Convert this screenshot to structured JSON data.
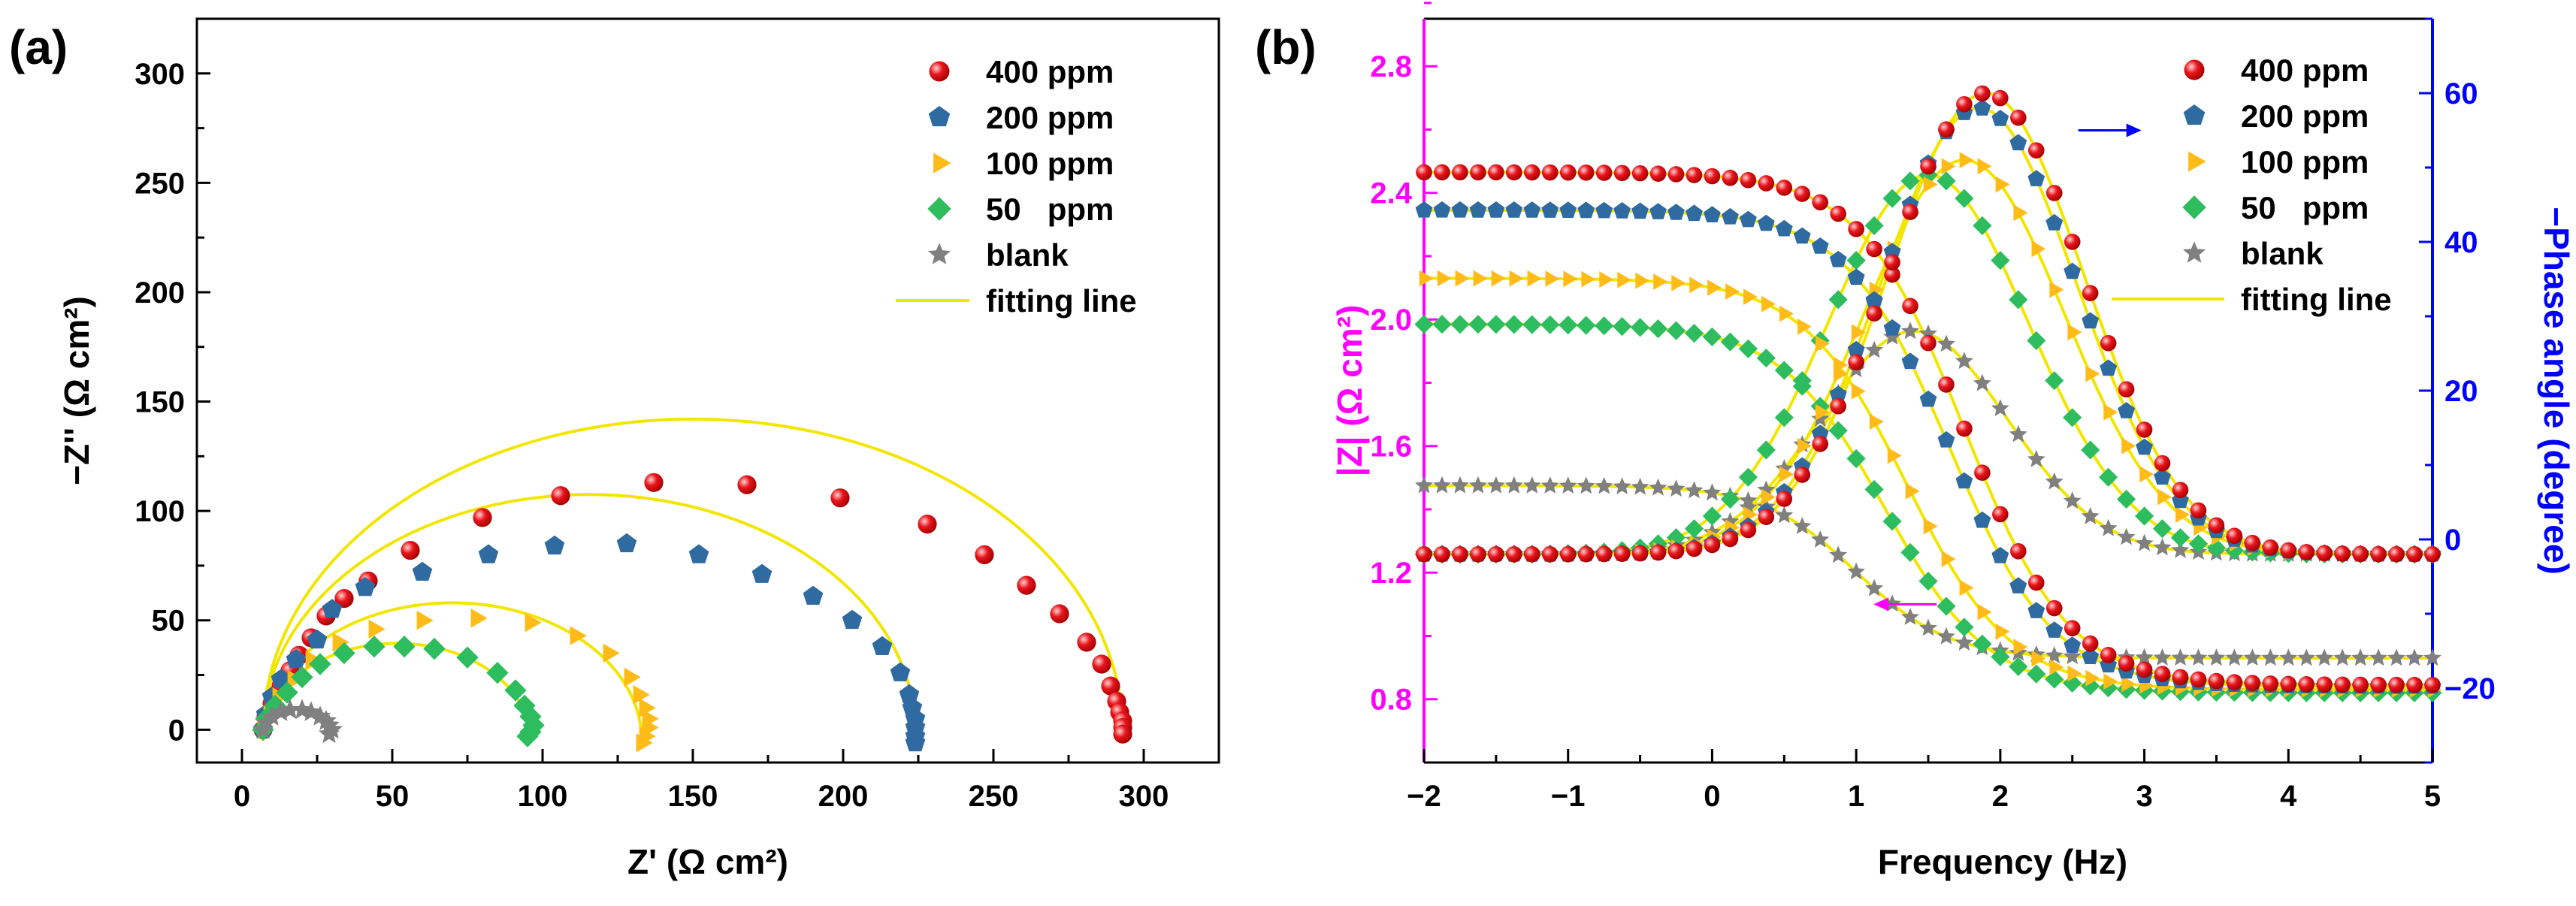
{
  "chart_data": [
    {
      "panel": "(a)",
      "type": "scatter",
      "title": "",
      "xlabel": "Z' (Ω cm²)",
      "ylabel": "−Z'' (Ω cm²)",
      "xlim": [
        -15,
        325
      ],
      "ylim": [
        -15,
        325
      ],
      "xticks": [
        0,
        50,
        100,
        150,
        200,
        250,
        300
      ],
      "yticks": [
        0,
        50,
        100,
        150,
        200,
        250,
        300
      ],
      "legend_position": "top-right",
      "legend": [
        "400 ppm",
        "200 ppm",
        "100 ppm",
        "50   ppm",
        "blank",
        "fitting line"
      ],
      "series": [
        {
          "name": "400 ppm",
          "marker": "circle",
          "color": "#e8141b",
          "points": [
            [
              7,
              0
            ],
            [
              8,
              6
            ],
            [
              10,
              12
            ],
            [
              13,
              20
            ],
            [
              16,
              27
            ],
            [
              19,
              34
            ],
            [
              23,
              42
            ],
            [
              28,
              52
            ],
            [
              34,
              60
            ],
            [
              42,
              68
            ],
            [
              56,
              82
            ],
            [
              80,
              97
            ],
            [
              106,
              107
            ],
            [
              137,
              113
            ],
            [
              168,
              112
            ],
            [
              199,
              106
            ],
            [
              228,
              94
            ],
            [
              247,
              80
            ],
            [
              261,
              66
            ],
            [
              272,
              53
            ],
            [
              281,
              40
            ],
            [
              286,
              30
            ],
            [
              289,
              20
            ],
            [
              291,
              13
            ],
            [
              292,
              8
            ],
            [
              293,
              4
            ],
            [
              293,
              1
            ],
            [
              293,
              -2
            ]
          ]
        },
        {
          "name": "200 ppm",
          "marker": "pentagon",
          "color": "#2f6aa0",
          "points": [
            [
              7,
              0
            ],
            [
              8,
              7
            ],
            [
              10,
              15
            ],
            [
              13,
              23
            ],
            [
              18,
              32
            ],
            [
              25,
              41
            ],
            [
              30,
              55
            ],
            [
              41,
              65
            ],
            [
              60,
              72
            ],
            [
              82,
              80
            ],
            [
              104,
              84
            ],
            [
              128,
              85
            ],
            [
              152,
              80
            ],
            [
              173,
              71
            ],
            [
              190,
              61
            ],
            [
              203,
              50
            ],
            [
              213,
              38
            ],
            [
              219,
              26
            ],
            [
              222,
              16
            ],
            [
              223,
              10
            ],
            [
              224,
              5
            ],
            [
              224,
              1
            ],
            [
              224,
              -3
            ],
            [
              224,
              -6
            ]
          ]
        },
        {
          "name": "100 ppm",
          "marker": "triangle",
          "color": "#ffbb17",
          "points": [
            [
              7,
              0
            ],
            [
              9,
              7
            ],
            [
              12,
              15
            ],
            [
              17,
              23
            ],
            [
              23,
              32
            ],
            [
              32,
              40
            ],
            [
              44,
              46
            ],
            [
              60,
              50
            ],
            [
              78,
              51
            ],
            [
              96,
              49
            ],
            [
              111,
              43
            ],
            [
              122,
              35
            ],
            [
              129,
              24
            ],
            [
              132,
              16
            ],
            [
              134,
              10
            ],
            [
              135,
              5
            ],
            [
              135,
              1
            ],
            [
              134,
              -3
            ],
            [
              133,
              -6
            ]
          ]
        },
        {
          "name": "50 ppm",
          "marker": "diamond",
          "color": "#2ebd5e",
          "points": [
            [
              7,
              0
            ],
            [
              8,
              5
            ],
            [
              11,
              11
            ],
            [
              15,
              17
            ],
            [
              20,
              24
            ],
            [
              26,
              30
            ],
            [
              34,
              35
            ],
            [
              44,
              38
            ],
            [
              54,
              38
            ],
            [
              64,
              37
            ],
            [
              75,
              33
            ],
            [
              85,
              26
            ],
            [
              91,
              18
            ],
            [
              94,
              11
            ],
            [
              96,
              6
            ],
            [
              97,
              2
            ],
            [
              96,
              -1
            ],
            [
              95,
              -3
            ]
          ]
        },
        {
          "name": "blank",
          "marker": "star",
          "color": "#808080",
          "points": [
            [
              7,
              0
            ],
            [
              8,
              3
            ],
            [
              10,
              6
            ],
            [
              13,
              8
            ],
            [
              16,
              9
            ],
            [
              20,
              9
            ],
            [
              23,
              8
            ],
            [
              26,
              6
            ],
            [
              28,
              4
            ],
            [
              29,
              2
            ],
            [
              30,
              0
            ],
            [
              29,
              -2
            ]
          ]
        }
      ],
      "fits": [
        {
          "name": "400 ppm",
          "type": "semicircle",
          "center": [
            150,
            -1
          ],
          "radius": 143
        },
        {
          "name": "200 ppm",
          "type": "semicircle",
          "center": [
            115.5,
            -1
          ],
          "radius": 108.5
        },
        {
          "name": "100 ppm",
          "type": "semicircle",
          "center": [
            70,
            -5
          ],
          "radius": 63
        },
        {
          "name": "50 ppm",
          "type": "semicircle",
          "center": [
            51.5,
            -5
          ],
          "radius": 44.5
        },
        {
          "name": "blank",
          "type": "semicircle",
          "center": [
            18.5,
            -2
          ],
          "radius": 11.5
        }
      ]
    },
    {
      "panel": "(b)",
      "type": "scatter",
      "title": "",
      "xlabel": "Frequency (Hz)",
      "ylabel_left": "|Z| (Ω cm²)",
      "ylabel_right": "−Phase angle (degree)",
      "xlim": [
        -2,
        5
      ],
      "ylim_left": [
        0.6,
        2.95
      ],
      "ylim_right": [
        -30,
        70
      ],
      "xticks": [
        -2,
        -1,
        0,
        1,
        2,
        3,
        4,
        5
      ],
      "xtick_labels": [
        "−2",
        "−1",
        "0",
        "1",
        "2",
        "3",
        "4",
        "5"
      ],
      "yticks_left": [
        0.8,
        1.2,
        1.6,
        2.0,
        2.4,
        2.8
      ],
      "ytick_labels_left": [
        "0.8",
        "1.2",
        "1.6",
        "2.0",
        "2.4",
        "2.8"
      ],
      "yticks_right": [
        -20,
        0,
        20,
        40,
        60
      ],
      "ytick_labels_right": [
        "−20",
        "0",
        "20",
        "40",
        "60"
      ],
      "left_axis_color": "#ff00ff",
      "right_axis_color": "#0000ff",
      "legend_position": "top-right",
      "legend": [
        "400 ppm",
        "200 ppm",
        "100 ppm",
        "50   ppm",
        "blank",
        "fitting line"
      ],
      "modulus_series": [
        {
          "name": "400 ppm",
          "marker": "circle",
          "color": "#e8141b",
          "high": 2.465,
          "low": 0.845,
          "center": 1.75,
          "width": 0.36
        },
        {
          "name": "200 ppm",
          "marker": "pentagon",
          "color": "#2f6aa0",
          "high": 2.345,
          "low": 0.84,
          "center": 1.65,
          "width": 0.36
        },
        {
          "name": "100 ppm",
          "marker": "triangle",
          "color": "#ffbb17",
          "high": 2.13,
          "low": 0.83,
          "center": 1.35,
          "width": 0.36
        },
        {
          "name": "50 ppm",
          "marker": "diamond",
          "color": "#2ebd5e",
          "high": 1.985,
          "low": 0.82,
          "center": 1.2,
          "width": 0.36
        },
        {
          "name": "blank",
          "marker": "star",
          "color": "#808080",
          "high": 1.475,
          "low": 0.93,
          "center": 1.0,
          "width": 0.32
        }
      ],
      "phase_series": [
        {
          "name": "400 ppm",
          "marker": "circle",
          "color": "#e8141b",
          "peak": 62,
          "peak_freq": 1.9,
          "width": 0.68,
          "base": -2
        },
        {
          "name": "200 ppm",
          "marker": "pentagon",
          "color": "#2f6aa0",
          "peak": 60,
          "peak_freq": 1.85,
          "width": 0.68,
          "base": -2
        },
        {
          "name": "100 ppm",
          "marker": "triangle",
          "color": "#ffbb17",
          "peak": 53,
          "peak_freq": 1.75,
          "width": 0.7,
          "base": -2
        },
        {
          "name": "50 ppm",
          "marker": "diamond",
          "color": "#2ebd5e",
          "peak": 51,
          "peak_freq": 1.5,
          "width": 0.7,
          "base": -2
        },
        {
          "name": "blank",
          "marker": "star",
          "color": "#808080",
          "peak": 30,
          "peak_freq": 1.4,
          "width": 0.65,
          "base": -2
        }
      ],
      "marker_freq_step": 0.125,
      "annotations": [
        {
          "type": "arrow",
          "direction": "right",
          "color": "#0000ff",
          "at": [
            2.75,
            55
          ],
          "axis": "right",
          "meaning": "phase curves"
        },
        {
          "type": "arrow",
          "direction": "left",
          "color": "#ff00ff",
          "at": [
            1.35,
            1.1
          ],
          "axis": "left",
          "meaning": "modulus curves"
        }
      ]
    }
  ]
}
